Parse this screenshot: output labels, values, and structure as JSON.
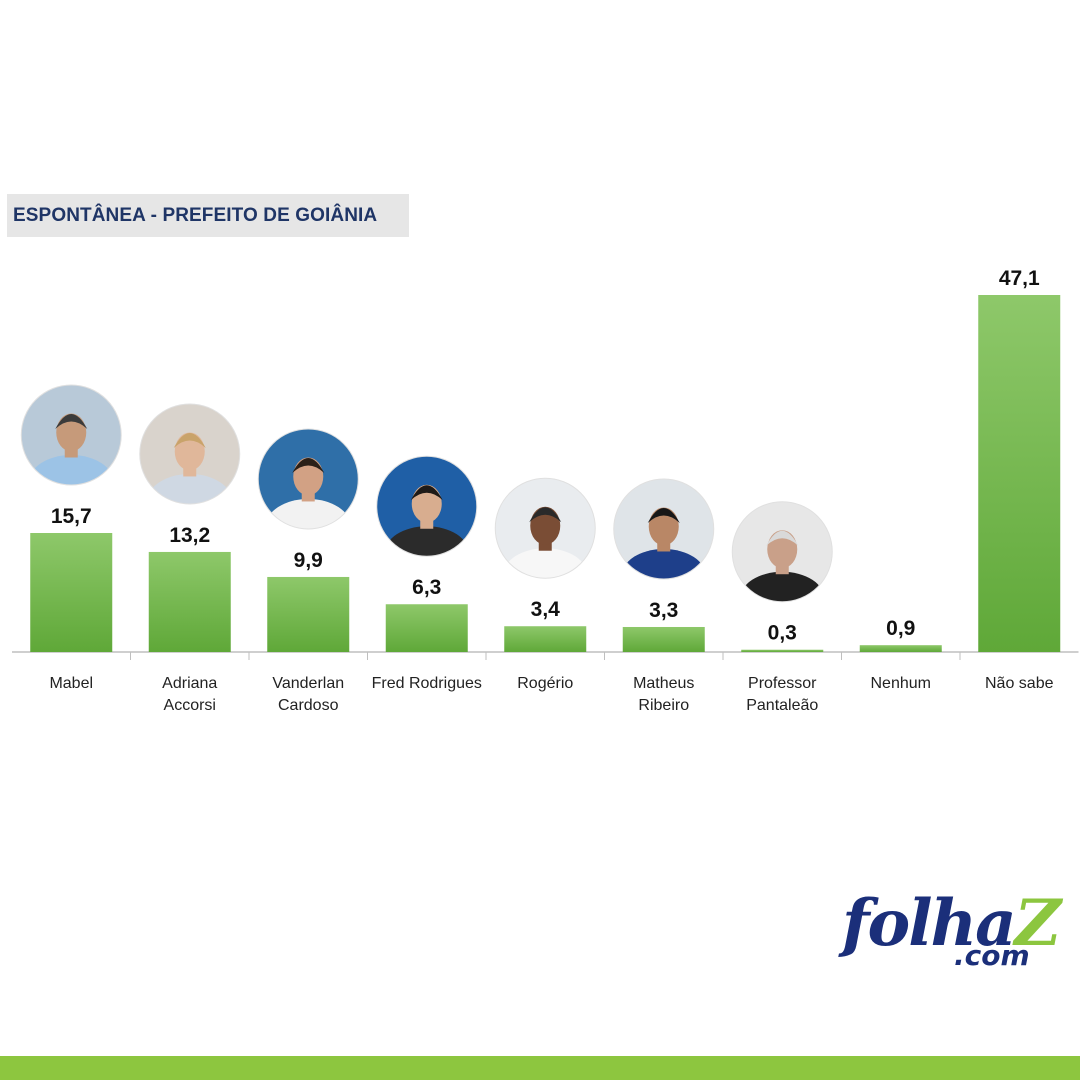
{
  "chart_data": {
    "type": "bar",
    "title": "ESPONTÂNEA - PREFEITO DE GOIÂNIA",
    "categories": [
      [
        "Mabel"
      ],
      [
        "Adriana",
        "Accorsi"
      ],
      [
        "Vanderlan",
        "Cardoso"
      ],
      [
        "Fred Rodrigues"
      ],
      [
        "Rogério"
      ],
      [
        "Matheus",
        "Ribeiro"
      ],
      [
        "Professor",
        "Pantaleão"
      ],
      [
        "Nenhum"
      ],
      [
        "Não sabe"
      ]
    ],
    "values": [
      15.7,
      13.2,
      9.9,
      6.3,
      3.4,
      3.3,
      0.3,
      0.9,
      47.1
    ],
    "value_labels": [
      "15,7",
      "13,2",
      "9,9",
      "6,3",
      "3,4",
      "3,3",
      "0,3",
      "0,9",
      "47,1"
    ],
    "photos": [
      true,
      true,
      true,
      true,
      true,
      true,
      true,
      false,
      false
    ],
    "ylim": [
      0,
      47.1
    ],
    "grid": false,
    "legend": "none",
    "bar_color_top": "#8ec86a",
    "bar_color_bottom": "#5fa838"
  },
  "logo": {
    "word": "folha",
    "letter": "Z",
    "suffix": ".com"
  },
  "colors": {
    "brand_green": "#8dc63f",
    "brand_navy": "#1b2f7a",
    "title_navy": "#1f3566"
  }
}
